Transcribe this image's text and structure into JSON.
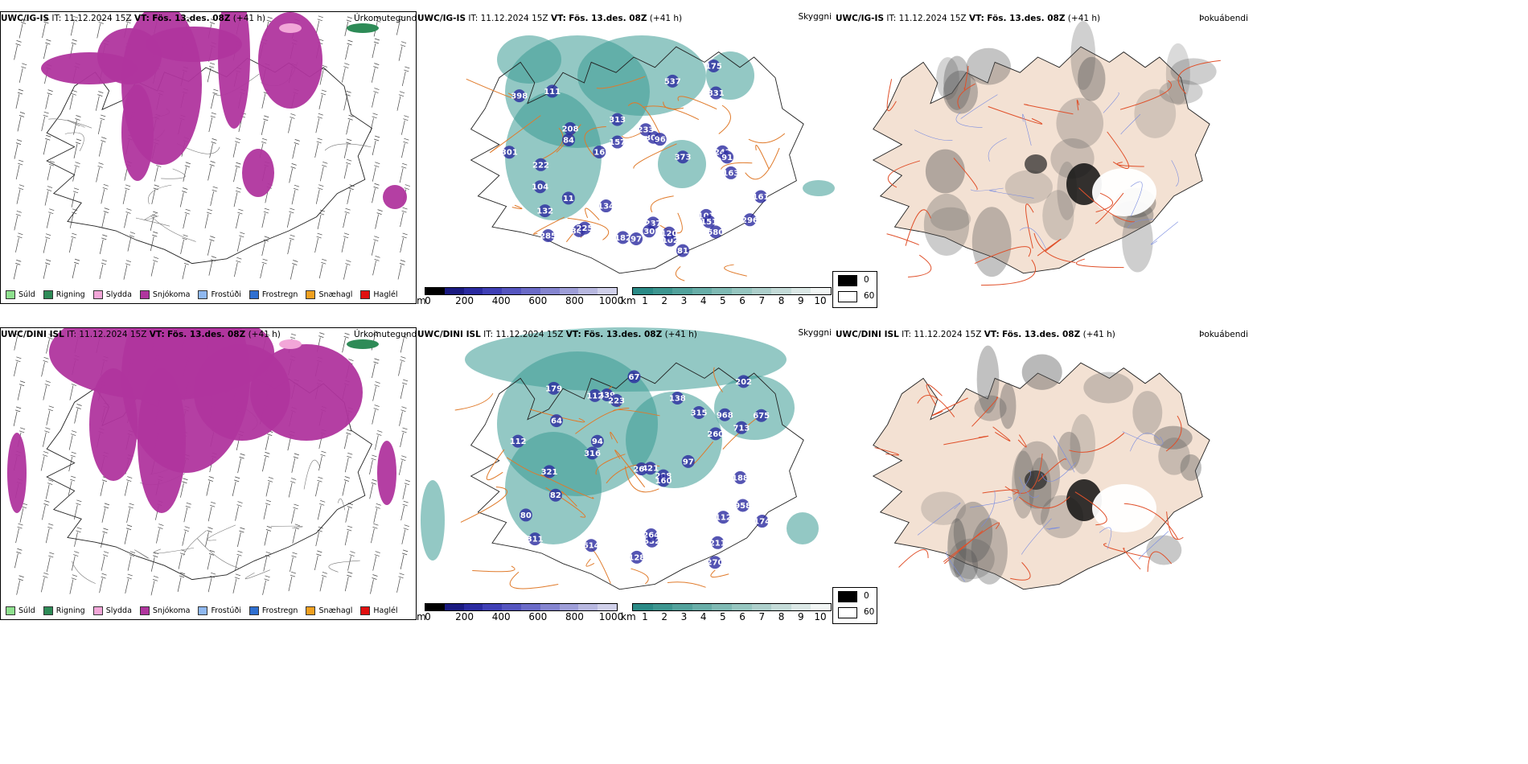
{
  "rows": [
    {
      "model": "UWC/IG-IS",
      "it_label": "IT:",
      "it_value": "11.12.2024 15Z",
      "vt_label": "VT:",
      "vt_value": "Fös. 13.des. 08Z",
      "lead": "(+41 h)",
      "labels_visibility": [
        "222",
        "537",
        "373",
        "309",
        "580",
        "285",
        "233",
        "349",
        "313",
        "134",
        "157",
        "175",
        "182",
        "237",
        "96",
        "398",
        "301",
        "132",
        "30",
        "104",
        "243",
        "208",
        "11",
        "296",
        "97",
        "81",
        "831",
        "102",
        "101",
        "151",
        "161",
        "91",
        "111",
        "163",
        "84",
        "16",
        "120",
        "225"
      ]
    },
    {
      "model": "UWC/DINI ISL",
      "it_label": "IT:",
      "it_value": "11.12.2024 15Z",
      "vt_label": "VT:",
      "vt_value": "Fös. 13.des. 08Z",
      "lead": "(+41 h)",
      "labels_visibility": [
        "675",
        "208",
        "614",
        "260",
        "968",
        "332",
        "321",
        "439",
        "264",
        "223",
        "160",
        "138",
        "188",
        "211",
        "179",
        "202",
        "316",
        "67",
        "270",
        "269",
        "713",
        "958",
        "97",
        "315",
        "421",
        "82",
        "112",
        "80",
        "94",
        "112",
        "112",
        "128",
        "64",
        "311",
        "174"
      ]
    }
  ],
  "panel_names": {
    "precip": "Úrkomutegund",
    "visibility": "Skyggni",
    "fog": "Þokuábendi"
  },
  "precip_legend": [
    {
      "label": "Súld",
      "color": "#8ee08e"
    },
    {
      "label": "Rigning",
      "color": "#2e8b57"
    },
    {
      "label": "Slydda",
      "color": "#f2a6d8"
    },
    {
      "label": "Snjókoma",
      "color": "#b0359e"
    },
    {
      "label": "Frostúði",
      "color": "#8fb8f0"
    },
    {
      "label": "Frostregn",
      "color": "#2f6fd0"
    },
    {
      "label": "Snæhagl",
      "color": "#f0a020"
    },
    {
      "label": "Haglél",
      "color": "#e01010"
    }
  ],
  "elevation_bar": {
    "unit": "m",
    "ticks": [
      "0",
      "200",
      "400",
      "600",
      "800",
      "1000"
    ],
    "colors": [
      "#000000",
      "#1a1a80",
      "#2a2aa0",
      "#3f3fb5",
      "#5555c0",
      "#6b6bc8",
      "#8585d0",
      "#9e9ed8",
      "#b8b8e0",
      "#d0d0ea"
    ]
  },
  "visibility_bar": {
    "unit": "km",
    "ticks": [
      "1",
      "2",
      "3",
      "4",
      "5",
      "6",
      "7",
      "8",
      "9",
      "10"
    ],
    "colors": [
      "#2a8a86",
      "#3d9690",
      "#52a29c",
      "#68aea8",
      "#7fbab4",
      "#96c6c0",
      "#adcfcb",
      "#c4dbd8",
      "#dbe8e6",
      "#f2f6f5"
    ]
  },
  "fog_legend": [
    {
      "value": "0",
      "color": "#000000"
    },
    {
      "value": "60",
      "color": "#ffffff"
    }
  ],
  "colors": {
    "snow": "#b0359e",
    "sleet": "#f2a6d8",
    "rain": "#2e8b57",
    "teal": "#3a9a94",
    "roads": "#e07a2a",
    "land": "#f3e1d3",
    "redroad": "#e0502a"
  }
}
